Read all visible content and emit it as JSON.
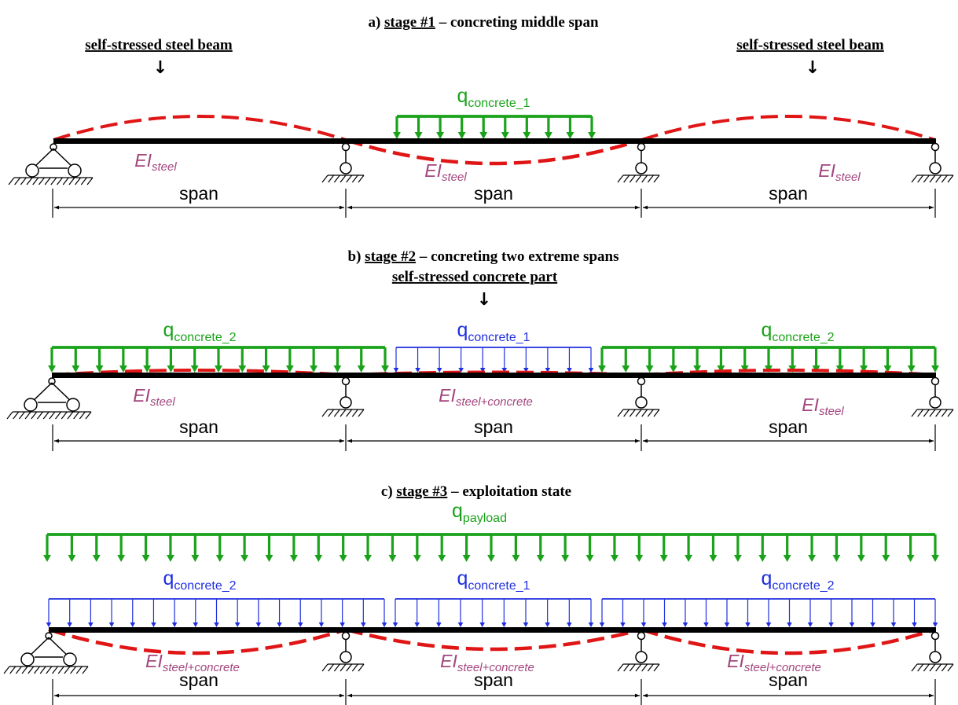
{
  "colors": {
    "load_green": "#1aa31a",
    "load_blue": "#1f2fe0",
    "deflection_red": "#e01515",
    "stiffness_purple": "#a3457e",
    "beam": "#000000"
  },
  "stage_a": {
    "title_prefix": "a) ",
    "title_stage": "stage #1",
    "title_rest": " – concreting middle span",
    "note_left": "self-stressed steel beam",
    "note_right": "self-stressed steel beam",
    "arrow": "↓",
    "load_mid": {
      "q": "q",
      "sub": "concrete_1"
    },
    "ei": [
      {
        "main": "EI",
        "sub": "steel"
      },
      {
        "main": "EI",
        "sub": "steel"
      },
      {
        "main": "EI",
        "sub": "steel"
      }
    ],
    "spans": [
      "span",
      "span",
      "span"
    ]
  },
  "stage_b": {
    "title_prefix": "b) ",
    "title_stage": "stage #2",
    "title_rest": " – concreting two extreme spans",
    "note": "self-stressed concrete part",
    "arrow": "↓",
    "load_left": {
      "q": "q",
      "sub": "concrete_2"
    },
    "load_mid": {
      "q": "q",
      "sub": "concrete_1"
    },
    "load_right": {
      "q": "q",
      "sub": "concrete_2"
    },
    "ei": [
      {
        "main": "EI",
        "sub": "steel"
      },
      {
        "main": "EI",
        "sub": "steel+concrete"
      },
      {
        "main": "EI",
        "sub": "steel"
      }
    ],
    "spans": [
      "span",
      "span",
      "span"
    ]
  },
  "stage_c": {
    "title_prefix": "c) ",
    "title_stage": "stage #3",
    "title_rest": " – exploitation state",
    "load_top": {
      "q": "q",
      "sub": "payload"
    },
    "load_left": {
      "q": "q",
      "sub": "concrete_2"
    },
    "load_mid": {
      "q": "q",
      "sub": "concrete_1"
    },
    "load_right": {
      "q": "q",
      "sub": "concrete_2"
    },
    "ei": [
      {
        "main": "EI",
        "sub": "steel+concrete"
      },
      {
        "main": "EI",
        "sub": "steel+concrete"
      },
      {
        "main": "EI",
        "sub": "steel+concrete"
      }
    ],
    "spans": [
      "span",
      "span",
      "span"
    ]
  }
}
